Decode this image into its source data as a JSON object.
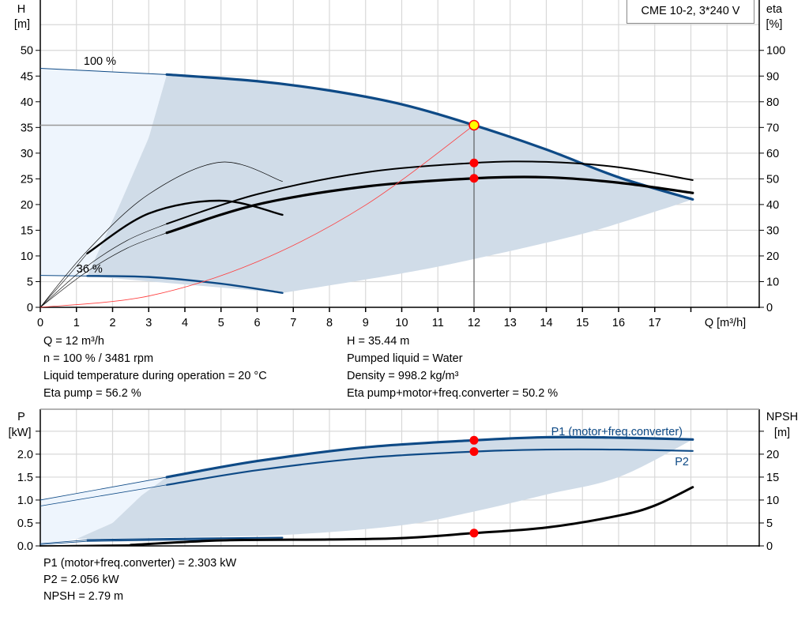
{
  "title_box": "CME 10-2, 3*240 V",
  "colors": {
    "curve_blue": "#0e4a86",
    "area_dark": "#d0dce8",
    "area_light": "#eef5fd",
    "system_curve": "#ff3b3b",
    "duty_point": "#ff0000",
    "duty_point_main": "#ffff00",
    "grid": "#d8d8d8"
  },
  "chart_data": [
    {
      "type": "line",
      "xlabel": "Q [m³/h]",
      "ylabel_left": [
        "H",
        "[m]"
      ],
      "ylabel_right": [
        "eta",
        "[%]"
      ],
      "xlim": [
        0,
        19.8
      ],
      "ylim_left": [
        0,
        59.8
      ],
      "ylim_right": [
        0,
        119.6
      ],
      "x_ticks": [
        0,
        1,
        2,
        3,
        4,
        5,
        6,
        7,
        8,
        9,
        10,
        11,
        12,
        13,
        14,
        15,
        16,
        17,
        18
      ],
      "x_tick_labels": [
        "0",
        "1",
        "2",
        "3",
        "4",
        "5",
        "6",
        "7",
        "8",
        "9",
        "10",
        "11",
        "12",
        "13",
        "14",
        "15",
        "16",
        "17",
        ""
      ],
      "y_left_ticks": [
        0,
        5,
        10,
        15,
        20,
        25,
        30,
        35,
        40,
        45,
        50
      ],
      "y_right_ticks": [
        0,
        10,
        20,
        30,
        40,
        50,
        60,
        70,
        80,
        90,
        100
      ],
      "grid": true,
      "annotations": [
        {
          "text": "100 %",
          "x": 1.2,
          "y": 47.2
        },
        {
          "text": "36 %",
          "x": 1.0,
          "y": 6.8
        }
      ],
      "series": [
        {
          "id": "H_100",
          "axis": "left",
          "points": [
            [
              3.5,
              45.3
            ],
            [
              6,
              44
            ],
            [
              8,
              42.2
            ],
            [
              10,
              39.5
            ],
            [
              12,
              35.44
            ],
            [
              14,
              30.7
            ],
            [
              16,
              25.3
            ],
            [
              18.05,
              21
            ]
          ],
          "ext": [
            [
              0,
              46.5
            ],
            [
              3.5,
              45.3
            ]
          ]
        },
        {
          "id": "H_36",
          "axis": "left",
          "points": [
            [
              1.3,
              6.1
            ],
            [
              3,
              5.9
            ],
            [
              5,
              4.6
            ],
            [
              6.7,
              2.8
            ]
          ],
          "ext": [
            [
              0,
              6.2
            ],
            [
              1.3,
              6.1
            ]
          ]
        },
        {
          "id": "eta_pump_100",
          "axis": "right",
          "points": [
            [
              3.5,
              32.5
            ],
            [
              6,
              44
            ],
            [
              9,
              52.5
            ],
            [
              12,
              56.2
            ],
            [
              14,
              56.6
            ],
            [
              16,
              54.5
            ],
            [
              18.05,
              49.5
            ]
          ],
          "ext": [
            [
              0,
              0
            ],
            [
              1.2,
              15
            ],
            [
              2.4,
              26
            ],
            [
              3.5,
              32.5
            ]
          ]
        },
        {
          "id": "eta_total_100",
          "axis": "right",
          "points": [
            [
              3.5,
              29
            ],
            [
              6,
              40
            ],
            [
              9,
              47
            ],
            [
              12,
              50.2
            ],
            [
              14,
              50.6
            ],
            [
              16,
              48.5
            ],
            [
              18.05,
              44.5
            ]
          ],
          "ext": [
            [
              0,
              0
            ],
            [
              1.2,
              13
            ],
            [
              2.4,
              23
            ],
            [
              3.5,
              29
            ]
          ]
        },
        {
          "id": "eta_pump_36",
          "axis": "right",
          "points": [
            [
              0,
              0
            ],
            [
              1.3,
              22
            ],
            [
              3,
              44
            ],
            [
              5,
              56.5
            ],
            [
              6.7,
              49
            ]
          ]
        },
        {
          "id": "eta_total_36",
          "axis": "right",
          "points": [
            [
              1.3,
              21
            ],
            [
              3,
              36.5
            ],
            [
              5,
              41.5
            ],
            [
              6.7,
              36
            ]
          ],
          "ext": [
            [
              0,
              0
            ],
            [
              0.7,
              11
            ],
            [
              1.3,
              21
            ]
          ]
        },
        {
          "id": "system_curve",
          "axis": "left",
          "function": "quadratic",
          "points": [
            [
              0,
              0
            ],
            [
              3,
              2.2
            ],
            [
              6,
              8.86
            ],
            [
              9,
              19.9
            ],
            [
              12,
              35.44
            ]
          ]
        }
      ],
      "area_boundary": {
        "upper_from_series": "H_100",
        "lower": [
          [
            18.05,
            21
          ],
          [
            17,
            18.6
          ],
          [
            15,
            14.3
          ],
          [
            12,
            9.4
          ],
          [
            10,
            6.6
          ],
          [
            6.7,
            2.8
          ]
        ],
        "left": [
          [
            1.3,
            6.1
          ],
          [
            2.2,
            20
          ],
          [
            3,
            33
          ],
          [
            3.5,
            45.3
          ]
        ]
      },
      "duty_point": {
        "Q": 12,
        "H": 35.44,
        "eta_pump": 56.2,
        "eta_total": 50.2
      },
      "readouts_left": [
        "Q = 12 m³/h",
        "n = 100 % / 3481 rpm",
        "Liquid temperature during operation = 20 °C",
        "Eta pump = 56.2 %"
      ],
      "readouts_right": [
        "H = 35.44 m",
        "Pumped liquid = Water",
        "Density = 998.2 kg/m³",
        "Eta pump+motor+freq.converter = 50.2 %"
      ]
    },
    {
      "type": "line",
      "ylabel_left": [
        "P",
        "[kW]"
      ],
      "ylabel_right": [
        "NPSH",
        "[m]"
      ],
      "ylim_left": [
        0,
        2.98
      ],
      "ylim_right": [
        0,
        29.8
      ],
      "y_left_ticks": [
        0,
        0.5,
        1.0,
        1.5,
        2.0,
        2.5
      ],
      "y_left_tick_labels": [
        "0.0",
        "0.5",
        "1.0",
        "1.5",
        "2.0",
        ""
      ],
      "y_right_ticks": [
        0,
        5,
        10,
        15,
        20,
        25
      ],
      "y_right_tick_labels": [
        "0",
        "5",
        "10",
        "15",
        "20",
        ""
      ],
      "grid": true,
      "series": [
        {
          "id": "P1",
          "name": "P1 (motor+freq.converter)",
          "axis": "left",
          "points": [
            [
              3.5,
              1.5
            ],
            [
              6,
              1.85
            ],
            [
              9,
              2.15
            ],
            [
              12,
              2.303
            ],
            [
              14,
              2.37
            ],
            [
              16,
              2.36
            ],
            [
              18.05,
              2.32
            ]
          ],
          "ext": [
            [
              0,
              1.0
            ],
            [
              3.5,
              1.5
            ]
          ]
        },
        {
          "id": "P2",
          "name": "P2",
          "axis": "left",
          "points": [
            [
              3.5,
              1.33
            ],
            [
              6,
              1.65
            ],
            [
              9,
              1.92
            ],
            [
              12,
              2.056
            ],
            [
              14,
              2.1
            ],
            [
              16,
              2.1
            ],
            [
              18.05,
              2.07
            ]
          ],
          "ext": [
            [
              0,
              0.87
            ],
            [
              3.5,
              1.33
            ]
          ]
        },
        {
          "id": "P1_36",
          "axis": "left",
          "points": [
            [
              1.3,
              0.13
            ],
            [
              4,
              0.16
            ],
            [
              6.7,
              0.18
            ]
          ],
          "ext": [
            [
              0,
              0.05
            ],
            [
              1.3,
              0.13
            ]
          ]
        },
        {
          "id": "P2_36",
          "axis": "left",
          "points": [
            [
              1.3,
              0.1
            ],
            [
              4,
              0.13
            ],
            [
              6.7,
              0.15
            ]
          ],
          "ext": [
            [
              0,
              0.03
            ],
            [
              1.3,
              0.1
            ]
          ]
        },
        {
          "id": "NPSH",
          "axis": "right",
          "points": [
            [
              2.5,
              0.2
            ],
            [
              5,
              1.2
            ],
            [
              8,
              1.4
            ],
            [
              10,
              1.7
            ],
            [
              12,
              2.79
            ],
            [
              14,
              4
            ],
            [
              16,
              6.6
            ],
            [
              17,
              8.8
            ],
            [
              18.05,
              12.8
            ]
          ],
          "ext": [
            [
              0,
              0
            ],
            [
              2.5,
              0.2
            ]
          ]
        }
      ],
      "area_boundary": {
        "lower": [
          [
            18.05,
            2.32
          ],
          [
            16,
            1.5
          ],
          [
            14,
            1.12
          ],
          [
            12,
            0.75
          ],
          [
            10,
            0.45
          ],
          [
            7,
            0.25
          ],
          [
            4,
            0.19
          ],
          [
            1,
            0.15
          ]
        ],
        "left": [
          [
            1,
            0.15
          ],
          [
            2,
            0.5
          ],
          [
            2.8,
            1.1
          ],
          [
            3.5,
            1.5
          ]
        ]
      },
      "duty_point": {
        "Q": 12,
        "P1": 2.303,
        "P2": 2.056,
        "NPSH": 2.79
      },
      "readouts": [
        "P1 (motor+freq.converter) = 2.303 kW",
        "P2 = 2.056 kW",
        "NPSH = 2.79 m"
      ]
    }
  ]
}
